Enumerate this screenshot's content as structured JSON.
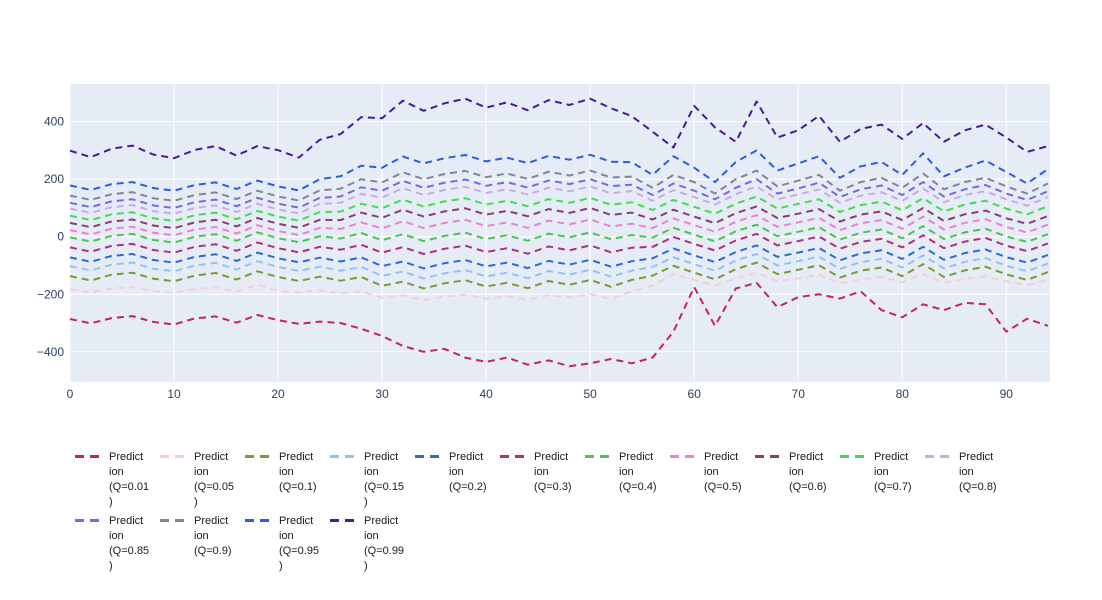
{
  "chart_data": {
    "type": "line",
    "title": "",
    "xlabel": "",
    "ylabel": "",
    "line_style": "dashed",
    "grid": true,
    "legend_position": "bottom-horizontal",
    "plot_background": "#e5ecf6",
    "grid_color": "#ffffff",
    "tick_label_color": "#2a3f5f",
    "x_ticks": [
      0,
      10,
      20,
      30,
      40,
      50,
      60,
      70,
      80,
      90
    ],
    "x_tick_labels": [
      "0",
      "10",
      "20",
      "30",
      "40",
      "50",
      "60",
      "70",
      "80",
      "90"
    ],
    "y_ticks": [
      -400,
      -200,
      0,
      200,
      400
    ],
    "y_tick_labels": [
      "−400",
      "−200",
      "0",
      "200",
      "400"
    ],
    "x_range": [
      0,
      94.2
    ],
    "y_range": [
      -505,
      531
    ],
    "x": [
      0,
      2,
      4,
      6,
      8,
      10,
      12,
      14,
      16,
      18,
      20,
      22,
      24,
      26,
      28,
      30,
      32,
      34,
      36,
      38,
      40,
      42,
      44,
      46,
      48,
      50,
      52,
      54,
      56,
      58,
      60,
      62,
      64,
      66,
      68,
      70,
      72,
      74,
      76,
      78,
      80,
      82,
      84,
      86,
      88,
      90,
      92,
      94
    ],
    "legend_rows": [
      11,
      4
    ],
    "series": [
      {
        "name": "Prediction (Q=0.01)",
        "legend_lines": [
          "Predict",
          "ion",
          "(Q=0.01",
          ")"
        ],
        "color": "#c22556",
        "values": [
          -286,
          -301,
          -283,
          -276,
          -296,
          -305,
          -284,
          -277,
          -299,
          -272,
          -290,
          -303,
          -295,
          -300,
          -320,
          -345,
          -380,
          -400,
          -390,
          -420,
          -435,
          -420,
          -445,
          -430,
          -450,
          -440,
          -425,
          -440,
          -420,
          -330,
          -175,
          -310,
          -180,
          -160,
          -245,
          -210,
          -200,
          -215,
          -190,
          -255,
          -280,
          -235,
          -255,
          -230,
          -235,
          -330,
          -285,
          -310
        ]
      },
      {
        "name": "Prediction (Q=0.05)",
        "legend_lines": [
          "Predict",
          "ion",
          "(Q=0.05",
          ")"
        ],
        "color": "#f8ccd6",
        "values": [
          -183,
          -193,
          -180,
          -175,
          -189,
          -195,
          -182,
          -176,
          -191,
          -166,
          -189,
          -194,
          -186,
          -197,
          -190,
          -212,
          -204,
          -220,
          -208,
          -201,
          -215,
          -207,
          -219,
          -203,
          -211,
          -200,
          -216,
          -190,
          -170,
          -130,
          -150,
          -170,
          -145,
          -125,
          -155,
          -145,
          -132,
          -162,
          -148,
          -140,
          -158,
          -130,
          -160,
          -146,
          -138,
          -155,
          -168,
          -150
        ]
      },
      {
        "name": "Prediction (Q=0.1)",
        "legend_lines": [
          "Predict",
          "ion",
          "(Q=0.1)"
        ],
        "color": "#7a9a2e",
        "values": [
          -137,
          -152,
          -132,
          -125,
          -146,
          -155,
          -135,
          -126,
          -149,
          -120,
          -140,
          -154,
          -139,
          -153,
          -140,
          -171,
          -156,
          -180,
          -162,
          -151,
          -173,
          -160,
          -179,
          -154,
          -167,
          -150,
          -174,
          -150,
          -135,
          -101,
          -125,
          -148,
          -113,
          -90,
          -130,
          -115,
          -99,
          -142,
          -118,
          -107,
          -137,
          -95,
          -140,
          -117,
          -104,
          -131,
          -150,
          -123
        ]
      },
      {
        "name": "Prediction (Q=0.15)",
        "legend_lines": [
          "Predict",
          "ion",
          "(Q=0.15",
          ")"
        ],
        "color": "#8ec4ef",
        "values": [
          -102,
          -117,
          -97,
          -90,
          -111,
          -120,
          -100,
          -91,
          -114,
          -85,
          -105,
          -119,
          -104,
          -118,
          -105,
          -136,
          -121,
          -145,
          -127,
          -116,
          -138,
          -125,
          -144,
          -119,
          -132,
          -115,
          -139,
          -118,
          -105,
          -71,
          -95,
          -118,
          -83,
          -60,
          -100,
          -85,
          -69,
          -112,
          -88,
          -77,
          -107,
          -65,
          -110,
          -87,
          -74,
          -101,
          -120,
          -93
        ]
      },
      {
        "name": "Prediction (Q=0.2)",
        "legend_lines": [
          "Predict",
          "ion",
          "(Q=0.2)"
        ],
        "color": "#2b6ad8",
        "values": [
          -72,
          -87,
          -67,
          -60,
          -81,
          -90,
          -70,
          -61,
          -84,
          -55,
          -75,
          -89,
          -73,
          -86,
          -72,
          -102,
          -86,
          -110,
          -92,
          -81,
          -103,
          -90,
          -109,
          -84,
          -97,
          -80,
          -104,
          -85,
          -75,
          -41,
          -65,
          -88,
          -53,
          -30,
          -70,
          -55,
          -39,
          -82,
          -58,
          -47,
          -77,
          -35,
          -80,
          -57,
          -44,
          -71,
          -90,
          -63
        ]
      },
      {
        "name": "Prediction (Q=0.3)",
        "legend_lines": [
          "Predict",
          "ion",
          "(Q=0.3)"
        ],
        "color": "#b22e79",
        "values": [
          -37,
          -52,
          -32,
          -25,
          -46,
          -55,
          -35,
          -26,
          -49,
          -20,
          -40,
          -54,
          -35,
          -45,
          -28,
          -55,
          -36,
          -60,
          -42,
          -31,
          -53,
          -40,
          -59,
          -34,
          -47,
          -30,
          -54,
          -38,
          -35,
          -1,
          -25,
          -48,
          -13,
          10,
          -30,
          -15,
          1,
          -42,
          -18,
          -7,
          -37,
          5,
          -40,
          -17,
          -4,
          -31,
          -50,
          -23
        ]
      },
      {
        "name": "Prediction (Q=0.4)",
        "legend_lines": [
          "Predict",
          "ion",
          "(Q=0.4)"
        ],
        "color": "#4cc34c",
        "values": [
          -2,
          -17,
          3,
          10,
          -11,
          -20,
          0,
          9,
          -14,
          15,
          -5,
          -19,
          2,
          -6,
          13,
          -12,
          9,
          -15,
          3,
          14,
          -8,
          5,
          -14,
          11,
          -2,
          15,
          -9,
          6,
          -3,
          31,
          7,
          -16,
          19,
          42,
          2,
          17,
          33,
          -10,
          14,
          25,
          -5,
          37,
          -8,
          15,
          28,
          1,
          -18,
          9
        ]
      },
      {
        "name": "Prediction (Q=0.5)",
        "legend_lines": [
          "Predict",
          "ion",
          "(Q=0.5)"
        ],
        "color": "#ef7fd4",
        "values": [
          23,
          8,
          28,
          35,
          14,
          5,
          25,
          34,
          11,
          40,
          20,
          6,
          31,
          27,
          50,
          29,
          54,
          30,
          48,
          59,
          37,
          50,
          31,
          56,
          43,
          60,
          36,
          45,
          30,
          64,
          40,
          17,
          52,
          75,
          35,
          50,
          66,
          23,
          47,
          58,
          28,
          70,
          25,
          48,
          61,
          34,
          15,
          42
        ]
      },
      {
        "name": "Prediction (Q=0.6)",
        "legend_lines": [
          "Predict",
          "ion",
          "(Q=0.6)"
        ],
        "color": "#8b3d73",
        "values": [
          48,
          33,
          53,
          60,
          39,
          30,
          50,
          59,
          36,
          65,
          45,
          31,
          59,
          58,
          84,
          66,
          94,
          70,
          88,
          99,
          77,
          90,
          71,
          96,
          83,
          100,
          76,
          84,
          60,
          94,
          70,
          47,
          82,
          105,
          65,
          80,
          96,
          53,
          77,
          88,
          58,
          100,
          55,
          78,
          91,
          64,
          45,
          72
        ]
      },
      {
        "name": "Prediction (Q=0.7)",
        "legend_lines": [
          "Predict",
          "ion",
          "(Q=0.7)"
        ],
        "color": "#3fdd4f",
        "values": [
          73,
          58,
          78,
          85,
          64,
          55,
          75,
          84,
          61,
          90,
          70,
          56,
          86,
          87,
          115,
          99,
          129,
          105,
          123,
          134,
          112,
          125,
          106,
          131,
          118,
          135,
          111,
          120,
          93,
          128,
          104,
          80,
          115,
          140,
          98,
          114,
          130,
          86,
          110,
          122,
          92,
          134,
          88,
          112,
          125,
          98,
          78,
          106
        ]
      },
      {
        "name": "Prediction (Q=0.8)",
        "legend_lines": [
          "Predict",
          "ion",
          "(Q=0.8)"
        ],
        "color": "#cbaae3",
        "values": [
          98,
          83,
          103,
          110,
          89,
          80,
          100,
          109,
          86,
          115,
          95,
          81,
          114,
          118,
          149,
          136,
          169,
          145,
          163,
          174,
          152,
          165,
          146,
          171,
          158,
          175,
          151,
          159,
          125,
          162,
          138,
          112,
          148,
          175,
          130,
          147,
          165,
          118,
          143,
          155,
          125,
          168,
          120,
          145,
          158,
          130,
          108,
          138
        ]
      },
      {
        "name": "Prediction (Q=0.85)",
        "legend_lines": [
          "Predict",
          "ion",
          "(Q=0.85",
          ")"
        ],
        "color": "#7668e2",
        "values": [
          118,
          103,
          123,
          130,
          109,
          100,
          120,
          129,
          106,
          135,
          115,
          101,
          135,
          140,
          172,
          160,
          194,
          170,
          188,
          199,
          177,
          190,
          171,
          196,
          183,
          200,
          176,
          181,
          145,
          185,
          160,
          130,
          170,
          200,
          150,
          168,
          188,
          138,
          165,
          178,
          145,
          190,
          140,
          165,
          180,
          150,
          128,
          158
        ]
      },
      {
        "name": "Prediction (Q=0.9)",
        "legend_lines": [
          "Predict",
          "ion",
          "(Q=0.9)"
        ],
        "color": "#82839a",
        "values": [
          143,
          128,
          148,
          155,
          134,
          125,
          145,
          154,
          131,
          160,
          140,
          126,
          161,
          167,
          200,
          189,
          224,
          200,
          218,
          229,
          207,
          220,
          201,
          226,
          213,
          230,
          206,
          209,
          170,
          215,
          190,
          150,
          200,
          230,
          175,
          195,
          215,
          160,
          190,
          205,
          170,
          220,
          165,
          190,
          205,
          175,
          150,
          185
        ]
      },
      {
        "name": "Prediction (Q=0.95)",
        "legend_lines": [
          "Predict",
          "ion",
          "(Q=0.95",
          ")"
        ],
        "color": "#2e5ce0",
        "values": [
          178,
          163,
          183,
          190,
          169,
          160,
          180,
          189,
          166,
          195,
          175,
          161,
          200,
          210,
          247,
          240,
          279,
          255,
          273,
          284,
          262,
          275,
          256,
          281,
          268,
          285,
          261,
          259,
          215,
          280,
          240,
          190,
          260,
          300,
          230,
          255,
          280,
          205,
          245,
          260,
          215,
          290,
          210,
          240,
          265,
          225,
          185,
          235
        ]
      },
      {
        "name": "Prediction (Q=0.99)",
        "legend_lines": [
          "Predict",
          "ion",
          "(Q=0.99",
          ")"
        ],
        "color": "#481a96",
        "values": [
          299,
          277,
          306,
          317,
          286,
          273,
          302,
          315,
          282,
          315,
          301,
          275,
          337,
          357,
          416,
          412,
          473,
          438,
          464,
          480,
          449,
          467,
          440,
          475,
          458,
          480,
          447,
          419,
          365,
          310,
          455,
          380,
          330,
          470,
          345,
          370,
          420,
          330,
          375,
          390,
          340,
          395,
          330,
          370,
          390,
          345,
          295,
          315
        ]
      }
    ]
  }
}
